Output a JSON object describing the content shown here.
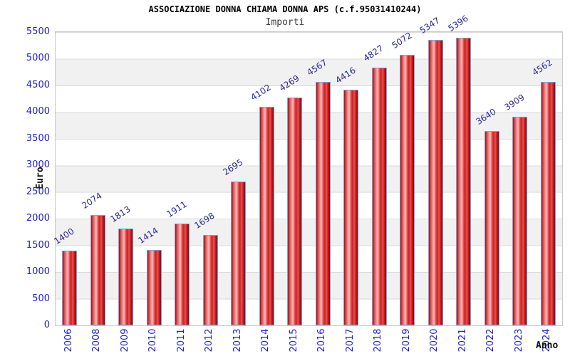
{
  "chart_data": {
    "type": "bar",
    "title": "ASSOCIAZIONE DONNA CHIAMA DONNA APS (c.f.95031410244)",
    "subtitle": "Importi",
    "xlabel": "Anno",
    "ylabel": "Euro",
    "categories": [
      "2006",
      "2008",
      "2009",
      "2010",
      "2011",
      "2012",
      "2013",
      "2014",
      "2015",
      "2016",
      "2017",
      "2018",
      "2019",
      "2020",
      "2021",
      "2022",
      "2023",
      "2024"
    ],
    "values": [
      1400,
      2074,
      1813,
      1414,
      1911,
      1698,
      2695,
      4102,
      4269,
      4567,
      4416,
      4827,
      5072,
      5347,
      5396,
      3640,
      3909,
      4562
    ],
    "ylim": [
      0,
      5500
    ],
    "ytick_step": 500,
    "ytick_labels": [
      "5500",
      "5000",
      "4500",
      "4000",
      "3500",
      "3000",
      "2500",
      "2000",
      "1500",
      "1000",
      "500",
      "0"
    ],
    "grid": "horizontal gridlines with alternating white/gray 500-unit bands",
    "legend": "none",
    "bar_labels_rotated": true,
    "colors": {
      "bar_fill": "#dd2222",
      "bar_border": "#74a7e0",
      "axis_text": "#2121cc",
      "value_label": "#2a2a9e",
      "band_gray": "#f1f1f1",
      "gridline": "#dadada",
      "title": "#000000",
      "subtitle": "#3c3c3c"
    }
  }
}
